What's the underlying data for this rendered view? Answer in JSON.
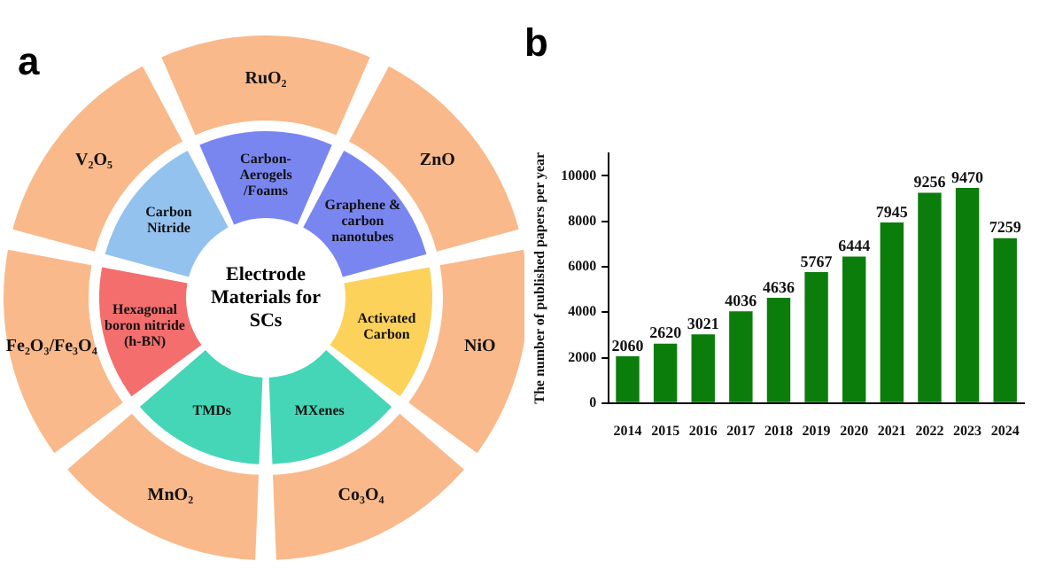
{
  "chart_data": [
    {
      "type": "other",
      "title": "a",
      "annotations": [
        "Electrode Materials for SCs",
        "Carbon-Aerogels /Foams",
        "Graphene & carbon nanotubes",
        "Activated Carbon",
        "MXenes",
        "TMDs",
        "Hexagonal boron nitride (h-BN)",
        "Carbon Nitride",
        "RuO₂",
        "ZnO",
        "NiO",
        "Co₃O₄",
        "MnO₂",
        "Fe₂O₃/Fe₃O₄",
        "V₂O₅"
      ]
    },
    {
      "type": "bar",
      "title": "b",
      "ylabel": "The number of published papers per year",
      "categories": [
        "2014",
        "2015",
        "2016",
        "2017",
        "2018",
        "2019",
        "2020",
        "2021",
        "2022",
        "2023",
        "2024"
      ],
      "values": [
        2060,
        2620,
        3021,
        4036,
        4636,
        5767,
        6444,
        7945,
        9256,
        9470,
        7259
      ],
      "color": "#0b7d0b",
      "ylim": [
        0,
        11000
      ],
      "yticks": [
        0,
        2000,
        4000,
        6000,
        8000,
        10000
      ],
      "grid": false,
      "legend": false,
      "data_labels": true
    }
  ]
}
